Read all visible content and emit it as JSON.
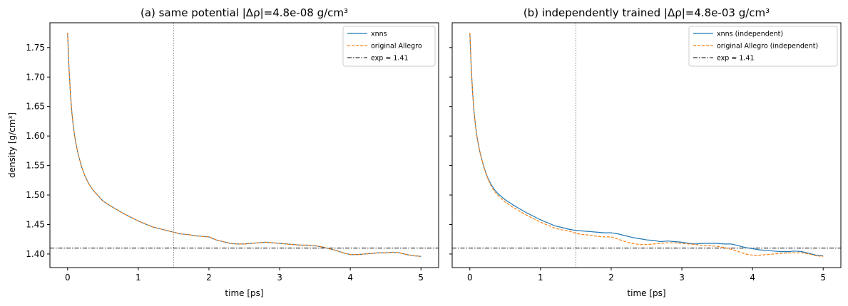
{
  "chart_data": [
    {
      "type": "line",
      "title": "(a) same potential  |Δρ|=4.8e-08 g/cm³",
      "xlabel": "time [ps]",
      "ylabel": "density [g/cm³]",
      "xlim": [
        -0.25,
        5.25
      ],
      "ylim": [
        1.377,
        1.792
      ],
      "xticks": [
        0,
        1,
        2,
        3,
        4,
        5
      ],
      "xtick_labels": [
        "0",
        "1",
        "2",
        "3",
        "4",
        "5"
      ],
      "yticks": [
        1.4,
        1.45,
        1.5,
        1.55,
        1.6,
        1.65,
        1.7,
        1.75
      ],
      "ytick_labels": [
        "1.40",
        "1.45",
        "1.50",
        "1.55",
        "1.60",
        "1.65",
        "1.70",
        "1.75"
      ],
      "show_ytick_labels": true,
      "grid": false,
      "legend": "top-right",
      "vline": 1.5,
      "hline": {
        "value": 1.41,
        "label": "exp ≈ 1.41",
        "color": "#000000"
      },
      "series": [
        {
          "name": "xnns",
          "color": "#1f77b4",
          "dash": "solid",
          "x": [
            0,
            0.02,
            0.04,
            0.06,
            0.08,
            0.1,
            0.12,
            0.15,
            0.2,
            0.25,
            0.3,
            0.35,
            0.4,
            0.5,
            0.6,
            0.7,
            0.8,
            0.9,
            1.0,
            1.1,
            1.2,
            1.3,
            1.4,
            1.5,
            1.6,
            1.7,
            1.8,
            1.9,
            2.0,
            2.1,
            2.2,
            2.3,
            2.4,
            2.5,
            2.6,
            2.7,
            2.8,
            2.9,
            3.0,
            3.1,
            3.2,
            3.3,
            3.4,
            3.5,
            3.6,
            3.7,
            3.8,
            3.9,
            4.0,
            4.1,
            4.2,
            4.3,
            4.4,
            4.5,
            4.6,
            4.7,
            4.8,
            4.9,
            5.0
          ],
          "y": [
            1.775,
            1.715,
            1.672,
            1.64,
            1.618,
            1.6,
            1.586,
            1.569,
            1.547,
            1.531,
            1.519,
            1.51,
            1.503,
            1.49,
            1.482,
            1.475,
            1.468,
            1.462,
            1.456,
            1.451,
            1.446,
            1.443,
            1.44,
            1.437,
            1.434,
            1.433,
            1.431,
            1.43,
            1.429,
            1.424,
            1.421,
            1.418,
            1.417,
            1.417,
            1.418,
            1.419,
            1.42,
            1.419,
            1.418,
            1.417,
            1.416,
            1.415,
            1.415,
            1.414,
            1.412,
            1.409,
            1.406,
            1.402,
            1.399,
            1.399,
            1.4,
            1.401,
            1.402,
            1.402,
            1.403,
            1.402,
            1.399,
            1.397,
            1.396
          ]
        },
        {
          "name": "original Allegro",
          "color": "#ff7f0e",
          "dash": "dashed",
          "x": [
            0,
            0.02,
            0.04,
            0.06,
            0.08,
            0.1,
            0.12,
            0.15,
            0.2,
            0.25,
            0.3,
            0.35,
            0.4,
            0.5,
            0.6,
            0.7,
            0.8,
            0.9,
            1.0,
            1.1,
            1.2,
            1.3,
            1.4,
            1.5,
            1.6,
            1.7,
            1.8,
            1.9,
            2.0,
            2.1,
            2.2,
            2.3,
            2.4,
            2.5,
            2.6,
            2.7,
            2.8,
            2.9,
            3.0,
            3.1,
            3.2,
            3.3,
            3.4,
            3.5,
            3.6,
            3.7,
            3.8,
            3.9,
            4.0,
            4.1,
            4.2,
            4.3,
            4.4,
            4.5,
            4.6,
            4.7,
            4.8,
            4.9,
            5.0
          ],
          "y": [
            1.775,
            1.715,
            1.672,
            1.64,
            1.618,
            1.6,
            1.586,
            1.569,
            1.547,
            1.531,
            1.519,
            1.51,
            1.503,
            1.49,
            1.482,
            1.475,
            1.468,
            1.462,
            1.456,
            1.451,
            1.446,
            1.443,
            1.44,
            1.437,
            1.434,
            1.433,
            1.431,
            1.43,
            1.429,
            1.424,
            1.421,
            1.418,
            1.417,
            1.417,
            1.418,
            1.419,
            1.42,
            1.419,
            1.418,
            1.417,
            1.416,
            1.415,
            1.415,
            1.414,
            1.412,
            1.409,
            1.406,
            1.402,
            1.399,
            1.399,
            1.4,
            1.401,
            1.402,
            1.402,
            1.403,
            1.402,
            1.399,
            1.397,
            1.396
          ]
        }
      ]
    },
    {
      "type": "line",
      "title": "(b) independently trained  |Δρ|=4.8e-03 g/cm³",
      "xlabel": "time [ps]",
      "ylabel": "",
      "xlim": [
        -0.25,
        5.25
      ],
      "ylim": [
        1.377,
        1.792
      ],
      "xticks": [
        0,
        1,
        2,
        3,
        4,
        5
      ],
      "xtick_labels": [
        "0",
        "1",
        "2",
        "3",
        "4",
        "5"
      ],
      "yticks": [
        1.4,
        1.45,
        1.5,
        1.55,
        1.6,
        1.65,
        1.7,
        1.75
      ],
      "ytick_labels": [
        "1.40",
        "1.45",
        "1.50",
        "1.55",
        "1.60",
        "1.65",
        "1.70",
        "1.75"
      ],
      "show_ytick_labels": false,
      "grid": false,
      "legend": "top-right",
      "vline": 1.5,
      "hline": {
        "value": 1.41,
        "label": "exp ≈ 1.41",
        "color": "#000000"
      },
      "series": [
        {
          "name": "xnns (independent)",
          "color": "#1f77b4",
          "dash": "solid",
          "x": [
            0,
            0.02,
            0.04,
            0.06,
            0.08,
            0.1,
            0.12,
            0.15,
            0.2,
            0.25,
            0.3,
            0.35,
            0.4,
            0.5,
            0.6,
            0.7,
            0.8,
            0.9,
            1.0,
            1.1,
            1.2,
            1.3,
            1.4,
            1.5,
            1.6,
            1.7,
            1.8,
            1.9,
            2.0,
            2.1,
            2.2,
            2.3,
            2.4,
            2.5,
            2.6,
            2.7,
            2.8,
            2.9,
            3.0,
            3.1,
            3.2,
            3.3,
            3.4,
            3.5,
            3.6,
            3.7,
            3.8,
            3.9,
            4.0,
            4.1,
            4.2,
            4.3,
            4.4,
            4.5,
            4.6,
            4.7,
            4.8,
            4.9,
            5.0
          ],
          "y": [
            1.775,
            1.715,
            1.672,
            1.64,
            1.618,
            1.6,
            1.586,
            1.569,
            1.547,
            1.53,
            1.518,
            1.509,
            1.502,
            1.492,
            1.484,
            1.477,
            1.47,
            1.464,
            1.458,
            1.453,
            1.448,
            1.445,
            1.442,
            1.44,
            1.439,
            1.438,
            1.437,
            1.436,
            1.436,
            1.434,
            1.431,
            1.428,
            1.426,
            1.424,
            1.423,
            1.421,
            1.422,
            1.421,
            1.42,
            1.418,
            1.417,
            1.418,
            1.418,
            1.418,
            1.417,
            1.417,
            1.414,
            1.411,
            1.409,
            1.407,
            1.406,
            1.405,
            1.404,
            1.404,
            1.405,
            1.404,
            1.401,
            1.398,
            1.397
          ]
        },
        {
          "name": "original Allegro (independent)",
          "color": "#ff7f0e",
          "dash": "dashed",
          "x": [
            0,
            0.02,
            0.04,
            0.06,
            0.08,
            0.1,
            0.12,
            0.15,
            0.2,
            0.25,
            0.3,
            0.35,
            0.4,
            0.5,
            0.6,
            0.7,
            0.8,
            0.9,
            1.0,
            1.1,
            1.2,
            1.3,
            1.4,
            1.5,
            1.6,
            1.7,
            1.8,
            1.9,
            2.0,
            2.1,
            2.2,
            2.3,
            2.4,
            2.5,
            2.6,
            2.7,
            2.8,
            2.9,
            3.0,
            3.1,
            3.2,
            3.3,
            3.4,
            3.5,
            3.6,
            3.7,
            3.8,
            3.9,
            4.0,
            4.1,
            4.2,
            4.3,
            4.4,
            4.5,
            4.6,
            4.7,
            4.8,
            4.9,
            5.0
          ],
          "y": [
            1.775,
            1.715,
            1.672,
            1.64,
            1.618,
            1.6,
            1.586,
            1.569,
            1.546,
            1.529,
            1.516,
            1.506,
            1.499,
            1.488,
            1.48,
            1.473,
            1.466,
            1.46,
            1.454,
            1.449,
            1.444,
            1.441,
            1.439,
            1.435,
            1.433,
            1.432,
            1.43,
            1.429,
            1.429,
            1.425,
            1.421,
            1.418,
            1.416,
            1.416,
            1.417,
            1.418,
            1.419,
            1.419,
            1.418,
            1.417,
            1.416,
            1.414,
            1.414,
            1.413,
            1.411,
            1.408,
            1.404,
            1.4,
            1.398,
            1.398,
            1.399,
            1.4,
            1.401,
            1.402,
            1.402,
            1.402,
            1.4,
            1.397,
            1.396
          ]
        }
      ]
    }
  ]
}
